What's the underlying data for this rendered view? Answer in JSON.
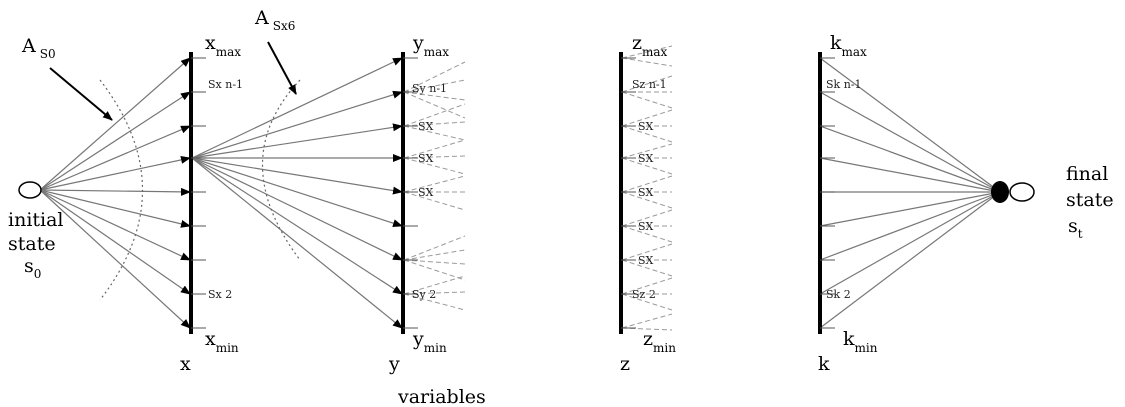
{
  "axes": {
    "x": {
      "name": "x",
      "max": "max",
      "min": "min",
      "upper_tick": "Sx n-1",
      "lower_tick": "Sx 2"
    },
    "y": {
      "name": "y",
      "max": "max",
      "min": "min",
      "upper_tick": "Sy n-1",
      "lower_tick": "Sy 2"
    },
    "z": {
      "name": "z",
      "max": "max",
      "min": "min",
      "upper_tick": "Sz n-1",
      "lower_tick": "Sz 2"
    },
    "k": {
      "name": "k",
      "max": "max",
      "min": "min",
      "upper_tick": "Sk n-1",
      "lower_tick": "Sk 2"
    }
  },
  "mid_tick_label": "SX",
  "action_labels": {
    "a_s0": {
      "main": "A",
      "sub": "S0"
    },
    "a_sx6": {
      "main": "A",
      "sub": "Sx6"
    }
  },
  "initial_state": {
    "line1": "initial",
    "line2": "state",
    "symbol": "s",
    "sub": "0"
  },
  "final_state": {
    "line1": "final",
    "line2": "state",
    "symbol": "s",
    "sub": "t"
  },
  "footer_label": "variables"
}
